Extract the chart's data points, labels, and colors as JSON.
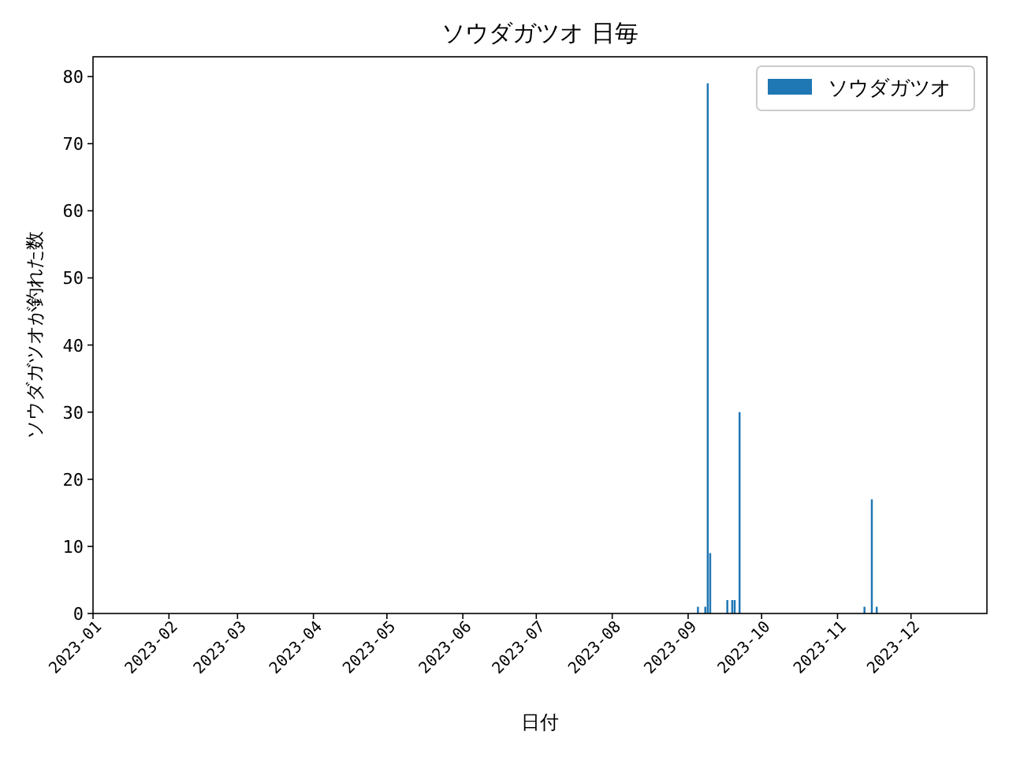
{
  "chart_data": {
    "type": "bar",
    "title": "ソウダガツオ 日毎",
    "xlabel": "日付",
    "ylabel": "ソウダガツオが釣れた数",
    "x": [
      "2023-09-05",
      "2023-09-08",
      "2023-09-09",
      "2023-09-10",
      "2023-09-17",
      "2023-09-19",
      "2023-09-20",
      "2023-09-22",
      "2023-11-12",
      "2023-11-15",
      "2023-11-17"
    ],
    "series": [
      {
        "name": "ソウダガツオ",
        "color": "#1f77b4",
        "values": [
          1,
          1,
          79,
          9,
          2,
          2,
          2,
          30,
          1,
          17,
          1
        ]
      }
    ],
    "xlim": [
      "2023-01-01",
      "2024-01-01"
    ],
    "xticks": [
      "2023-01",
      "2023-02",
      "2023-03",
      "2023-04",
      "2023-05",
      "2023-06",
      "2023-07",
      "2023-08",
      "2023-09",
      "2023-10",
      "2023-11",
      "2023-12"
    ],
    "ylim": [
      0,
      82.95
    ],
    "yticks": [
      0,
      10,
      20,
      30,
      40,
      50,
      60,
      70,
      80
    ],
    "legend": "top right",
    "grid": false
  }
}
